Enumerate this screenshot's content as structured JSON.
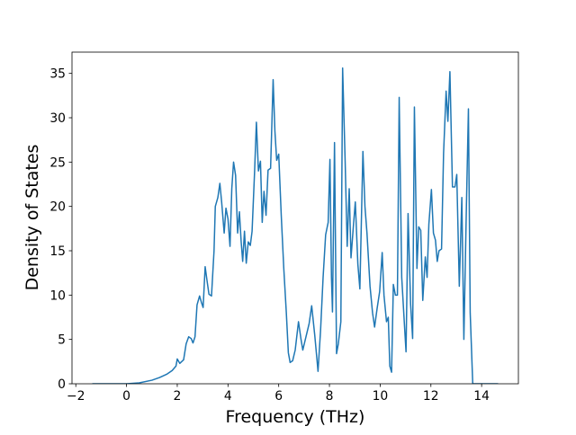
{
  "chart_data": {
    "type": "line",
    "xlabel": "Frequency (THz)",
    "ylabel": "Density of States",
    "xlim": [
      -2.15,
      15.45
    ],
    "ylim": [
      0,
      37.4
    ],
    "xticks": [
      {
        "value": -2,
        "label": "−2"
      },
      0,
      2,
      4,
      6,
      8,
      10,
      12,
      14
    ],
    "yticks": [
      0,
      5,
      10,
      15,
      20,
      25,
      30,
      35
    ],
    "x": [
      -1.35,
      -0.5,
      0,
      0.5,
      1.0,
      1.3,
      1.6,
      1.8,
      1.95,
      2.0,
      2.1,
      2.25,
      2.35,
      2.45,
      2.55,
      2.62,
      2.7,
      2.78,
      2.88,
      2.95,
      3.02,
      3.1,
      3.18,
      3.25,
      3.35,
      3.45,
      3.5,
      3.6,
      3.68,
      3.75,
      3.85,
      3.92,
      4.0,
      4.08,
      4.15,
      4.22,
      4.3,
      4.38,
      4.45,
      4.52,
      4.58,
      4.65,
      4.72,
      4.8,
      4.88,
      4.95,
      5.05,
      5.12,
      5.2,
      5.28,
      5.35,
      5.42,
      5.5,
      5.58,
      5.68,
      5.78,
      5.85,
      5.92,
      6.0,
      6.1,
      6.2,
      6.3,
      6.38,
      6.45,
      6.55,
      6.65,
      6.78,
      6.88,
      6.95,
      7.05,
      7.2,
      7.3,
      7.42,
      7.5,
      7.55,
      7.65,
      7.75,
      7.85,
      7.95,
      8.02,
      8.08,
      8.12,
      8.2,
      8.28,
      8.35,
      8.45,
      8.52,
      8.62,
      8.7,
      8.78,
      8.85,
      8.95,
      9.02,
      9.12,
      9.2,
      9.32,
      9.4,
      9.48,
      9.6,
      9.7,
      9.78,
      9.88,
      9.98,
      10.08,
      10.15,
      10.25,
      10.32,
      10.38,
      10.45,
      10.52,
      10.6,
      10.68,
      10.75,
      10.85,
      10.95,
      11.02,
      11.1,
      11.2,
      11.28,
      11.35,
      11.45,
      11.52,
      11.6,
      11.68,
      11.78,
      11.85,
      11.92,
      12.02,
      12.1,
      12.18,
      12.25,
      12.32,
      12.42,
      12.5,
      12.6,
      12.67,
      12.75,
      12.85,
      12.95,
      13.02,
      13.12,
      13.22,
      13.3,
      13.4,
      13.48,
      13.55,
      13.65,
      14.0,
      14.65
    ],
    "series": [
      {
        "color": "#1f77b4",
        "values": [
          0,
          0,
          0,
          0.1,
          0.4,
          0.7,
          1.1,
          1.5,
          2.0,
          2.8,
          2.3,
          2.7,
          4.5,
          5.3,
          5.1,
          4.6,
          5.3,
          8.9,
          9.9,
          9.2,
          8.6,
          13.2,
          11.5,
          10.1,
          9.9,
          15,
          20,
          21,
          22.6,
          20.5,
          17,
          19.8,
          18.6,
          15.5,
          22,
          25,
          23.5,
          17,
          19.4,
          16,
          13.8,
          17.2,
          13.6,
          16,
          15.6,
          17.2,
          24,
          29.5,
          24,
          25.1,
          18.2,
          21.7,
          19,
          24.1,
          24.3,
          34.3,
          28.5,
          25.2,
          25.9,
          19,
          13,
          8,
          3.5,
          2.4,
          2.6,
          3.8,
          7,
          5,
          3.8,
          5,
          6.8,
          8.8,
          5.5,
          3,
          1.4,
          6,
          12,
          16.8,
          18.2,
          25.3,
          12,
          8.1,
          27.2,
          3.4,
          4.5,
          7,
          35.6,
          25,
          15.5,
          22,
          14.2,
          18,
          20.5,
          13.5,
          10.7,
          26.2,
          20,
          17,
          11,
          8,
          6.4,
          8.5,
          10.4,
          14.8,
          10,
          7,
          7.5,
          2,
          1.3,
          11.2,
          10,
          10,
          32.3,
          12,
          7,
          3.6,
          19.2,
          9,
          5.1,
          31.2,
          13,
          17.7,
          17.3,
          9.4,
          14.3,
          12,
          18,
          21.9,
          17,
          16.2,
          13.8,
          15,
          15.2,
          26,
          33,
          29.6,
          35.2,
          22.2,
          22.2,
          23.6,
          11,
          21,
          5,
          20,
          31,
          8,
          0,
          0,
          0
        ]
      }
    ]
  }
}
